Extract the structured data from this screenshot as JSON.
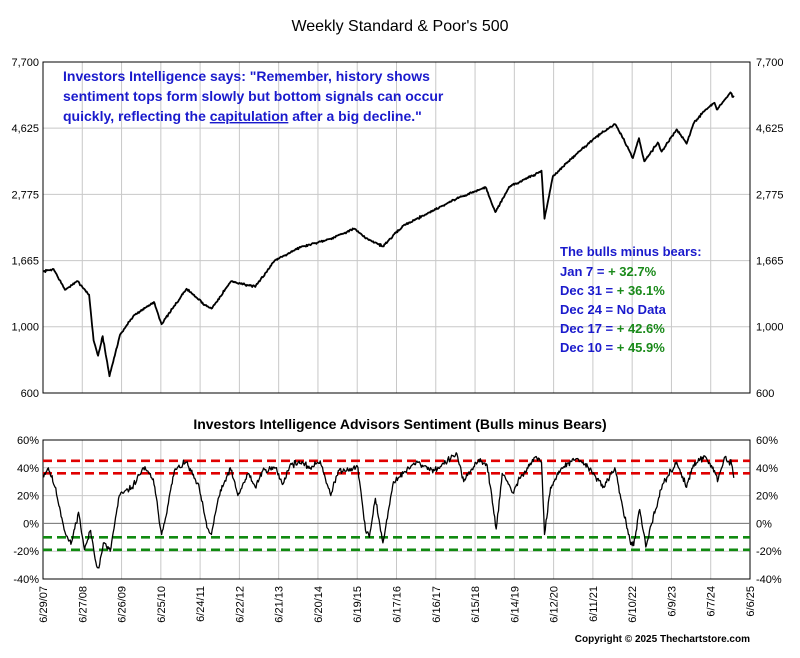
{
  "colors": {
    "series": "#000000",
    "annotation_blue": "#1a1acc",
    "annotation_green": "#1a8a1a",
    "red_band": "#e00000",
    "green_band": "#108a10",
    "grid": "#c8c8c8"
  },
  "chart_data": [
    {
      "type": "line",
      "title": "Weekly Standard & Poor's 500",
      "yscale": "log",
      "ylim": [
        600,
        7700
      ],
      "yticks": [
        600,
        1000,
        1665,
        2775,
        4625,
        7700
      ],
      "ytick_labels": [
        "600",
        "1,000",
        "1,665",
        "2,775",
        "4,625",
        "7,700"
      ],
      "xlim": [
        "2007-06-29",
        "2025-06-06"
      ],
      "grid": true,
      "series": [
        {
          "x": [
            "2007-06-29",
            "2007-10-05",
            "2008-01-18",
            "2008-05-16",
            "2008-08-29",
            "2008-10-10",
            "2008-11-21",
            "2009-01-02",
            "2009-03-06",
            "2009-06-12",
            "2009-10-16",
            "2010-04-23",
            "2010-07-02",
            "2011-02-18",
            "2011-08-12",
            "2011-10-07",
            "2012-04-06",
            "2012-11-16",
            "2013-05-17",
            "2013-12-27",
            "2014-10-10",
            "2015-05-22",
            "2015-08-28",
            "2016-02-12",
            "2016-08-19",
            "2017-12-29",
            "2018-09-21",
            "2018-12-21",
            "2019-04-26",
            "2019-12-27",
            "2020-02-21",
            "2020-03-20",
            "2020-06-05",
            "2020-12-31",
            "2021-06-25",
            "2021-12-31",
            "2022-03-04",
            "2022-06-17",
            "2022-08-12",
            "2022-09-30",
            "2023-02-03",
            "2023-03-10",
            "2023-07-28",
            "2023-10-27",
            "2023-12-29",
            "2024-03-29",
            "2024-07-12",
            "2024-08-02",
            "2024-11-29",
            "2024-12-06",
            "2024-12-31",
            "2025-01-07"
          ],
          "y": [
            1530,
            1560,
            1330,
            1420,
            1280,
            900,
            800,
            930,
            683,
            940,
            1090,
            1210,
            1020,
            1340,
            1180,
            1150,
            1420,
            1360,
            1670,
            1840,
            1970,
            2130,
            1990,
            1860,
            2180,
            2690,
            2930,
            2420,
            2940,
            3240,
            3330,
            2300,
            3190,
            3760,
            4280,
            4770,
            4380,
            3670,
            4280,
            3580,
            4140,
            3860,
            4580,
            4100,
            4770,
            5250,
            5620,
            5340,
            6030,
            6090,
            5880,
            5940
          ]
        }
      ]
    },
    {
      "type": "line",
      "title": "Investors Intelligence Advisors Sentiment (Bulls minus Bears)",
      "ylim": [
        -40,
        60
      ],
      "yticks": [
        -40,
        -20,
        0,
        20,
        40,
        60
      ],
      "ytick_labels": [
        "-40%",
        "-20%",
        "0%",
        "20%",
        "40%",
        "60%"
      ],
      "xlim": [
        "2007-06-29",
        "2025-06-06"
      ],
      "xtick_labels": [
        "6/29/07",
        "6/27/08",
        "6/26/09",
        "6/25/10",
        "6/24/11",
        "6/22/12",
        "6/21/13",
        "6/20/14",
        "6/19/15",
        "6/17/16",
        "6/16/17",
        "6/15/18",
        "6/14/19",
        "6/12/20",
        "6/11/21",
        "6/10/22",
        "6/9/23",
        "6/7/24",
        "6/6/25"
      ],
      "xtick_dates": [
        "2007-06-29",
        "2008-06-27",
        "2009-06-26",
        "2010-06-25",
        "2011-06-24",
        "2012-06-22",
        "2013-06-21",
        "2014-06-20",
        "2015-06-19",
        "2016-06-17",
        "2017-06-16",
        "2018-06-15",
        "2019-06-14",
        "2020-06-12",
        "2021-06-11",
        "2022-06-10",
        "2023-06-09",
        "2024-06-07",
        "2025-06-06"
      ],
      "reference_lines": [
        {
          "y": 45,
          "color": "red",
          "style": "dashed"
        },
        {
          "y": 36,
          "color": "red",
          "style": "dashed"
        },
        {
          "y": 0,
          "color": "gray",
          "style": "solid"
        },
        {
          "y": -10,
          "color": "green",
          "style": "dashed"
        },
        {
          "y": -19,
          "color": "green",
          "style": "dashed"
        }
      ],
      "series": [
        {
          "x": [
            "2007-06-29",
            "2007-08-17",
            "2007-10-19",
            "2008-01-25",
            "2008-03-14",
            "2008-05-23",
            "2008-07-18",
            "2008-09-12",
            "2008-10-31",
            "2008-11-28",
            "2009-01-09",
            "2009-03-13",
            "2009-06-05",
            "2009-10-02",
            "2010-01-15",
            "2010-04-16",
            "2010-07-02",
            "2010-08-27",
            "2010-10-29",
            "2011-02-18",
            "2011-06-17",
            "2011-08-26",
            "2011-10-07",
            "2011-12-09",
            "2012-03-30",
            "2012-06-08",
            "2012-09-14",
            "2012-11-16",
            "2013-01-25",
            "2013-05-24",
            "2013-07-26",
            "2013-10-04",
            "2013-12-20",
            "2014-04-11",
            "2014-07-11",
            "2014-10-17",
            "2014-12-26",
            "2015-06-26",
            "2015-09-04",
            "2015-10-09",
            "2015-12-04",
            "2016-02-12",
            "2016-05-20",
            "2016-08-19",
            "2016-12-16",
            "2017-06-02",
            "2017-12-29",
            "2018-03-02",
            "2018-07-20",
            "2018-10-05",
            "2018-12-28",
            "2019-02-22",
            "2019-05-31",
            "2019-08-16",
            "2019-12-27",
            "2020-02-21",
            "2020-03-20",
            "2020-05-15",
            "2020-08-28",
            "2020-12-31",
            "2021-03-12",
            "2021-06-25",
            "2021-09-24",
            "2021-12-31",
            "2022-02-25",
            "2022-05-20",
            "2022-06-24",
            "2022-08-19",
            "2022-10-14",
            "2023-01-13",
            "2023-03-17",
            "2023-07-28",
            "2023-10-27",
            "2023-12-29",
            "2024-04-19",
            "2024-07-12",
            "2024-08-09",
            "2024-10-18",
            "2024-11-29",
            "2024-12-10",
            "2024-12-17",
            "2024-12-31",
            "2025-01-07"
          ],
          "y": [
            34,
            40,
            26,
            -8,
            -15,
            8,
            -19,
            -5,
            -28,
            -32,
            -14,
            -20,
            20,
            26,
            40,
            32,
            -8,
            12,
            38,
            44,
            25,
            -3,
            -8,
            18,
            40,
            20,
            36,
            26,
            38,
            40,
            28,
            42,
            44,
            40,
            45,
            20,
            38,
            40,
            -5,
            -10,
            18,
            -14,
            30,
            36,
            44,
            38,
            50,
            30,
            46,
            42,
            -4,
            36,
            22,
            34,
            48,
            44,
            -8,
            26,
            40,
            46,
            44,
            35,
            26,
            40,
            18,
            -12,
            -16,
            10,
            -17,
            10,
            28,
            44,
            26,
            42,
            48,
            38,
            30,
            48,
            42,
            45.9,
            42.6,
            36.1,
            32.7
          ]
        }
      ]
    }
  ],
  "annotations": {
    "ii_quote": {
      "line1": "Investors Intelligence says: \"Remember, history shows",
      "line2": "sentiment tops form slowly but bottom signals can occur",
      "line3_pre": "quickly, reflecting the ",
      "line3_link": "capitulation",
      "line3_post": " after a big decline.\""
    },
    "bulls_bears": {
      "heading": "The bulls minus bears:",
      "rows": [
        {
          "label": "Jan 7 = ",
          "value": "+ 32.7%",
          "positive": true
        },
        {
          "label": "Dec 31 = ",
          "value": "+ 36.1%",
          "positive": true
        },
        {
          "label": "Dec 24 = No Data",
          "value": "",
          "positive": false
        },
        {
          "label": "Dec 17 = ",
          "value": "+ 42.6%",
          "positive": true
        },
        {
          "label": "Dec 10 = ",
          "value": "+ 45.9%",
          "positive": true
        }
      ]
    }
  },
  "footer": {
    "copyright": "Copyright © 2025 Thechartstore.com"
  }
}
